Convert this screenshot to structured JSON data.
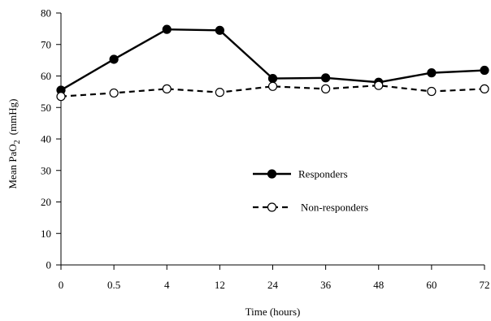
{
  "chart_data": {
    "type": "line",
    "title": "",
    "xlabel": "Time (hours)",
    "ylabel": {
      "main": "Mean PaO",
      "subscript": "2",
      "unit": "(mmHg)"
    },
    "categories": [
      "0",
      "0.5",
      "4",
      "12",
      "24",
      "36",
      "48",
      "60",
      "72"
    ],
    "y_ticks": [
      "0",
      "10",
      "20",
      "30",
      "40",
      "50",
      "60",
      "70",
      "80"
    ],
    "ylim": [
      0,
      80
    ],
    "grid": false,
    "legend_position": "middle-right",
    "series": [
      {
        "name": "Responders",
        "line_style": "solid",
        "marker": "filled-circle",
        "color": "#000000",
        "values": [
          55.5,
          65.3,
          74.8,
          74.5,
          59.2,
          59.4,
          58.0,
          61.0,
          61.8
        ]
      },
      {
        "name": "Non-responders",
        "line_style": "dashed",
        "marker": "open-circle",
        "color": "#000000",
        "values": [
          53.5,
          54.6,
          55.9,
          54.8,
          56.7,
          55.9,
          57.0,
          55.1,
          55.9
        ]
      }
    ]
  }
}
